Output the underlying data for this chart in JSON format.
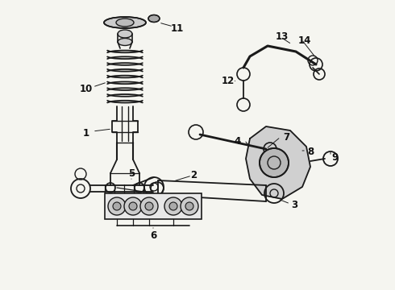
{
  "bg_color": "#f5f5f0",
  "line_color": "#1a1a1a",
  "label_color": "#111111",
  "figsize": [
    4.9,
    3.6
  ],
  "dpi": 100,
  "xlim": [
    0,
    490
  ],
  "ylim": [
    0,
    360
  ]
}
